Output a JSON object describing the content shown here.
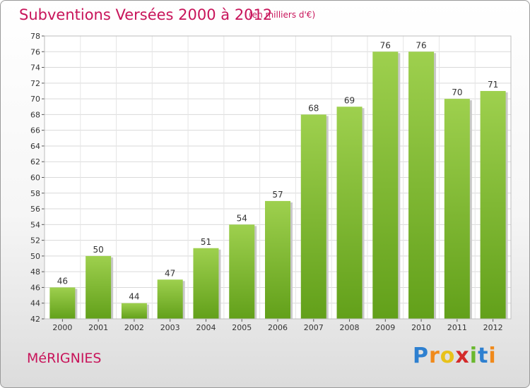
{
  "header": {
    "title": "Subventions Versées 2000 à 2012",
    "unit_note": "(en milliers d'€)"
  },
  "footer": {
    "location": "MéRIGNIES",
    "logo_text": "Proxiti"
  },
  "colors": {
    "title": "#c8145a",
    "bar_light": "#9ed04e",
    "bar_dark": "#62a01a",
    "grid": "#d9d9d9",
    "axis": "#555555"
  },
  "chart_data": {
    "type": "bar",
    "title": "Subventions Versées 2000 à 2012",
    "xlabel": "",
    "ylabel": "",
    "categories": [
      "2000",
      "2001",
      "2002",
      "2003",
      "2004",
      "2005",
      "2006",
      "2007",
      "2008",
      "2009",
      "2010",
      "2011",
      "2012"
    ],
    "values": [
      46,
      50,
      44,
      47,
      51,
      54,
      57,
      68,
      69,
      76,
      76,
      70,
      71
    ],
    "ylim": [
      42,
      78
    ],
    "yticks": [
      42,
      44,
      46,
      48,
      50,
      52,
      54,
      56,
      58,
      60,
      62,
      64,
      66,
      68,
      70,
      72,
      74,
      76,
      78
    ],
    "grid": true,
    "legend": "none"
  }
}
